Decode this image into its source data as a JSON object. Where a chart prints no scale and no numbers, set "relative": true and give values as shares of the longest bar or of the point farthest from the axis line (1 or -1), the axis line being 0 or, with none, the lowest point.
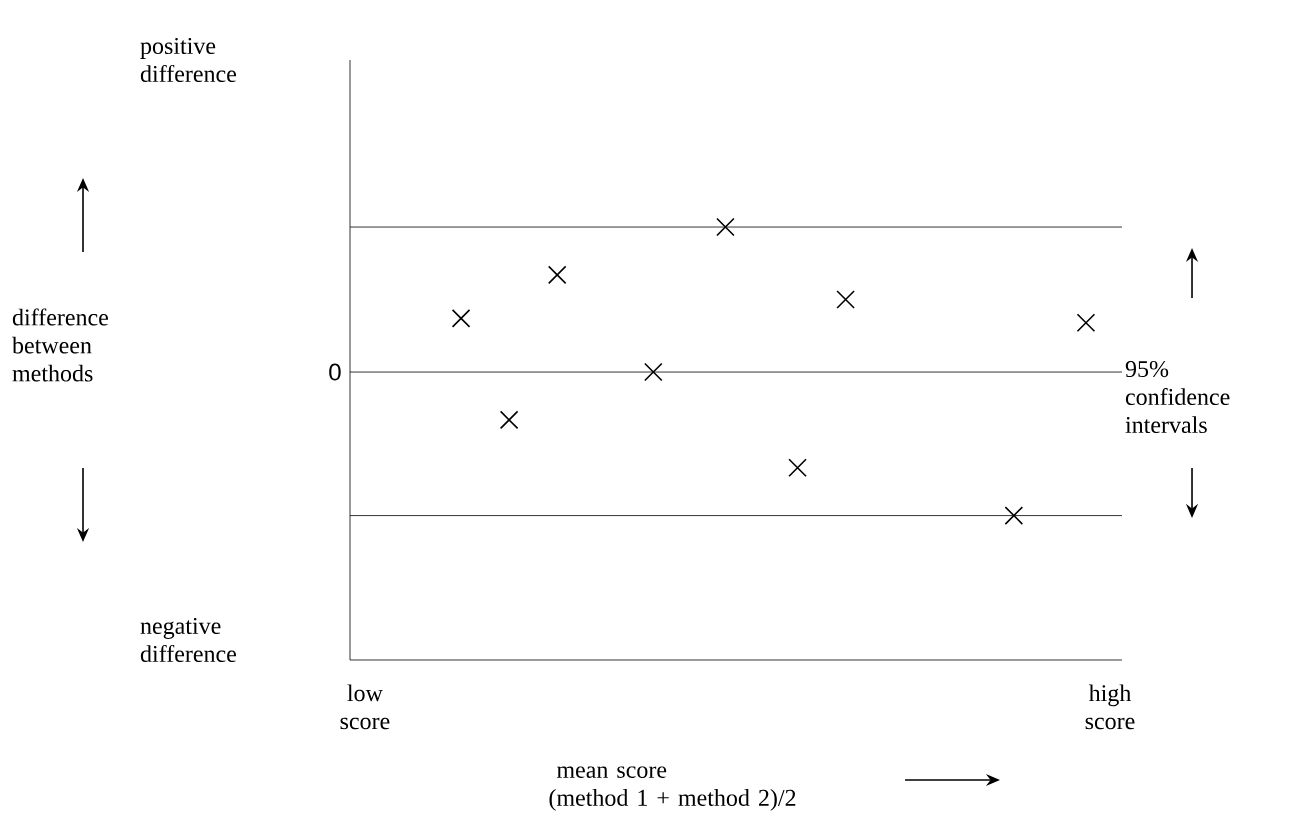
{
  "chart_data": {
    "type": "scatter",
    "relative": true,
    "xlabel": "mean score (method 1 + method 2)/2",
    "categories": [
      "low score",
      null,
      null,
      null,
      null,
      null,
      null,
      null,
      null,
      null,
      null,
      null,
      null,
      null,
      null,
      null,
      null,
      null,
      null,
      null,
      null,
      null,
      null,
      null,
      null,
      null,
      null,
      null,
      null,
      null,
      null,
      "high score"
    ],
    "values": [
      null,
      null,
      null,
      null,
      0.37,
      null,
      -0.33,
      null,
      0.67,
      null,
      null,
      null,
      0,
      null,
      null,
      1.0,
      null,
      null,
      -0.66,
      null,
      0.5,
      null,
      null,
      null,
      null,
      null,
      null,
      -0.99,
      null,
      null,
      0.34,
      null
    ],
    "color": "#000000",
    "marker": "cross",
    "ref_lines": [
      {
        "axis": "y",
        "value": 0,
        "label": "0"
      },
      {
        "axis": "y",
        "value": 1.0
      },
      {
        "axis": "y",
        "value": -0.99
      }
    ],
    "annotations": [
      "positive difference",
      "negative difference",
      "95% confidence intervals",
      "difference between methods"
    ]
  }
}
